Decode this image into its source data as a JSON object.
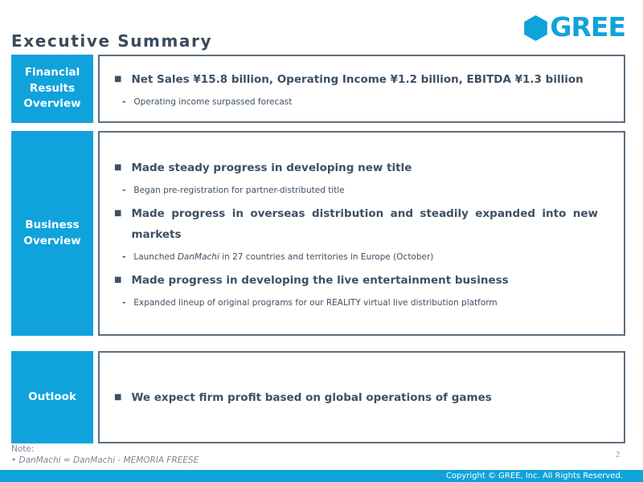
{
  "slide": {
    "title": "Executive Summary",
    "logo": {
      "brand": "GREE"
    },
    "markers": {
      "bullet": "■",
      "sub": "-"
    },
    "sections": [
      {
        "label": "Financial Results Overview",
        "items": [
          {
            "type": "bullet",
            "segments": [
              {
                "t": "Net Sales ¥15.8 billion, Operating Income ¥1.2 billion, EBITDA ¥1.3 billion"
              }
            ]
          },
          {
            "type": "sub",
            "segments": [
              {
                "t": "Operating income surpassed forecast"
              }
            ]
          }
        ]
      },
      {
        "label": "Business Overview",
        "items": [
          {
            "type": "bullet",
            "segments": [
              {
                "t": "Made steady progress in developing new title"
              }
            ]
          },
          {
            "type": "sub",
            "segments": [
              {
                "t": "Began pre-registration for partner-distributed title"
              }
            ]
          },
          {
            "type": "bullet",
            "segments": [
              {
                "t": "Made progress in overseas distribution and steadily expanded into new markets"
              }
            ]
          },
          {
            "type": "sub",
            "segments": [
              {
                "t": "Launched "
              },
              {
                "t": "DanMachi",
                "italic": true
              },
              {
                "t": " in 27 countries and territories in Europe (October)"
              }
            ]
          },
          {
            "type": "bullet",
            "segments": [
              {
                "t": "Made progress in developing the live entertainment business"
              }
            ]
          },
          {
            "type": "sub",
            "segments": [
              {
                "t": "Expanded lineup of original programs for our REALITY virtual live distribution platform"
              }
            ]
          }
        ]
      },
      {
        "label": "Outlook",
        "items": [
          {
            "type": "bullet",
            "segments": [
              {
                "t": "We expect firm profit based on global operations of games"
              }
            ]
          }
        ]
      }
    ],
    "note": {
      "label": "Note:",
      "body": "• DanMachi = DanMachi - MEMORIA FREESE"
    },
    "page_number": "2",
    "footer": {
      "copyright": "Copyright © GREE, Inc. All Rights Reserved."
    }
  },
  "colors": {
    "brand_blue": "#10a3db",
    "text_dark": "#3d5064",
    "box_border": "#5e6f80",
    "note_gray": "#7d8893"
  }
}
